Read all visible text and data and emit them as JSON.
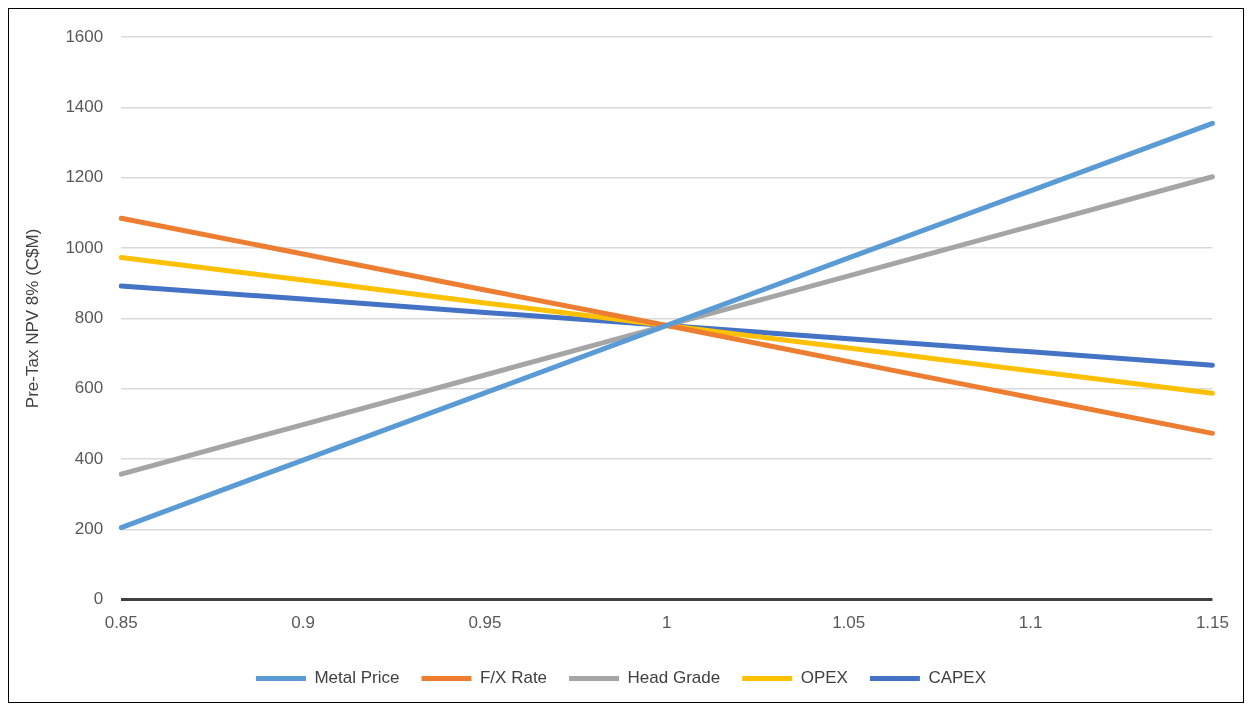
{
  "chart_data": {
    "type": "line",
    "ylabel": "Pre-Tax NPV 8% (C$M)",
    "categories": [
      "0.85",
      "0.9",
      "0.95",
      "1",
      "1.05",
      "1.1",
      "1.15"
    ],
    "series": [
      {
        "name": "Metal Price",
        "color": "#5b9bd5",
        "values": [
          205,
          397,
          588,
          780,
          972,
          1163,
          1355
        ]
      },
      {
        "name": "F/X Rate",
        "color": "#ed7d31",
        "values": [
          1085,
          983,
          881,
          780,
          677,
          575,
          473
        ]
      },
      {
        "name": "Head Grade",
        "color": "#a5a5a5",
        "values": [
          357,
          498,
          639,
          780,
          921,
          1062,
          1203
        ]
      },
      {
        "name": "OPEX",
        "color": "#ffc000",
        "values": [
          973,
          909,
          844,
          780,
          716,
          651,
          587
        ]
      },
      {
        "name": "CAPEX",
        "color": "#4472c4",
        "values": [
          892,
          855,
          817,
          780,
          742,
          705,
          667
        ]
      }
    ],
    "ylim": [
      0,
      1600
    ],
    "yticks": [
      0,
      200,
      400,
      600,
      800,
      1000,
      1200,
      1400,
      1600
    ],
    "grid": "y",
    "legend": "bottom",
    "marker": "none",
    "line_style": "solid"
  }
}
